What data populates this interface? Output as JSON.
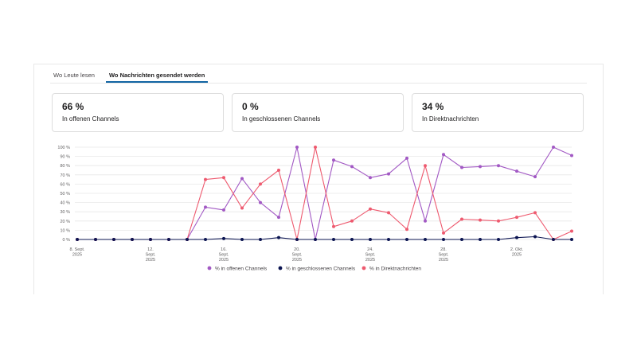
{
  "tabs": [
    {
      "label": "Wo Leute lesen"
    },
    {
      "label": "Wo Nachrichten gesendet werden"
    }
  ],
  "cards": [
    {
      "value": "66 %",
      "label": "In offenen Channels"
    },
    {
      "value": "0 %",
      "label": "In geschlossenen Channels"
    },
    {
      "value": "34 %",
      "label": "In Direktnachrichten"
    }
  ],
  "colors": {
    "open": "#a259c4",
    "closed": "#0b1451",
    "dm": "#ee5a6f",
    "grid": "#e8e8e8",
    "tab_accent": "#1264a3"
  },
  "chart_data": {
    "type": "line",
    "ylim": [
      0,
      100
    ],
    "y_ticks": [
      "0 %",
      "10 %",
      "20 %",
      "30 %",
      "40 %",
      "50 %",
      "60 %",
      "70 %",
      "80 %",
      "90 %",
      "100 %"
    ],
    "x_tick_labels": [
      {
        "index": 0,
        "lines": [
          "8. Sept.",
          "2025"
        ]
      },
      {
        "index": 4,
        "lines": [
          "12.",
          "Sept.",
          "2025"
        ]
      },
      {
        "index": 8,
        "lines": [
          "16.",
          "Sept.",
          "2025"
        ]
      },
      {
        "index": 12,
        "lines": [
          "20.",
          "Sept.",
          "2025"
        ]
      },
      {
        "index": 16,
        "lines": [
          "24.",
          "Sept.",
          "2025"
        ]
      },
      {
        "index": 20,
        "lines": [
          "28.",
          "Sept.",
          "2025"
        ]
      },
      {
        "index": 24,
        "lines": [
          "2. Okt.",
          "2025"
        ]
      }
    ],
    "num_points": 28,
    "series": [
      {
        "name": "% in offenen Channels",
        "color_key": "open",
        "values": [
          0,
          0,
          0,
          0,
          0,
          0,
          0,
          35,
          32,
          66,
          40,
          24,
          100,
          0,
          86,
          79,
          67,
          71,
          88,
          20,
          92,
          78,
          79,
          80,
          74,
          68,
          100,
          91
        ]
      },
      {
        "name": "% in geschlossenen Channels",
        "color_key": "closed",
        "values": [
          0,
          0,
          0,
          0,
          0,
          0,
          0,
          0,
          1,
          0,
          0,
          2,
          0,
          0,
          0,
          0,
          0,
          0,
          0,
          0,
          0,
          0,
          0,
          0,
          2,
          3,
          0,
          0
        ]
      },
      {
        "name": "% in Direktnachrichten",
        "color_key": "dm",
        "values": [
          0,
          0,
          0,
          0,
          0,
          0,
          0,
          65,
          67,
          34,
          60,
          75,
          0,
          100,
          14,
          20,
          33,
          29,
          11,
          80,
          7,
          22,
          21,
          20,
          24,
          29,
          0,
          9
        ]
      }
    ]
  }
}
